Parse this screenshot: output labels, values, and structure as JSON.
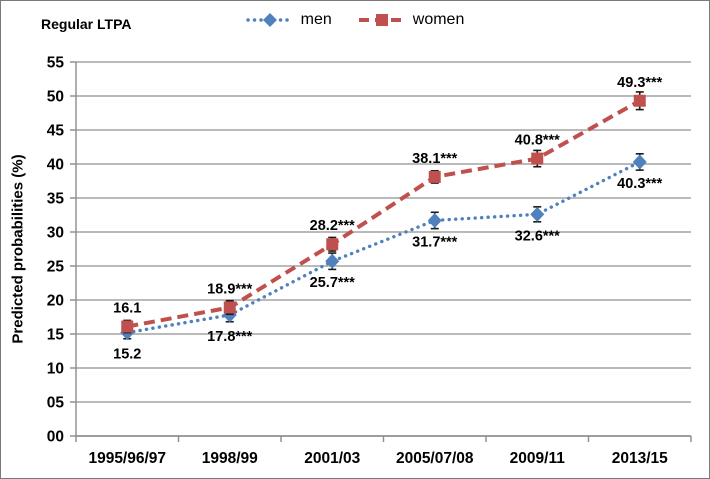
{
  "chart_data": {
    "type": "line",
    "title": "Regular LTPA",
    "xlabel": "",
    "ylabel": "Predicted probabilities (%)",
    "categories": [
      "1995/96/97",
      "1998/99",
      "2001/03",
      "2005/07/08",
      "2009/11",
      "2013/15"
    ],
    "ylim": [
      0,
      55
    ],
    "y_tick_labels": [
      "00",
      "05",
      "10",
      "15",
      "20",
      "25",
      "30",
      "35",
      "40",
      "45",
      "50",
      "55"
    ],
    "grid": "horizontal",
    "legend_position": "top-center",
    "colors": {
      "men": "#4F81BD",
      "women": "#C0504D",
      "gridline": "#A3A3A3",
      "axis": "#8C8C8C",
      "error_bar": "#1a1a1a",
      "text": "#000000"
    },
    "series": [
      {
        "name": "men",
        "color": "#4F81BD",
        "marker": "diamond",
        "line_style": "dotted",
        "values": [
          15.2,
          17.8,
          25.7,
          31.7,
          32.6,
          40.3
        ],
        "point_labels": [
          "15.2",
          "17.8***",
          "25.7***",
          "31.7***",
          "32.6***",
          "40.3***"
        ],
        "label_side": "below",
        "error_bars": [
          0.9,
          1.0,
          1.2,
          1.2,
          1.1,
          1.2
        ]
      },
      {
        "name": "women",
        "color": "#C0504D",
        "marker": "square",
        "line_style": "dashed",
        "values": [
          16.1,
          18.9,
          28.2,
          38.1,
          40.8,
          49.3
        ],
        "point_labels": [
          "16.1",
          "18.9***",
          "28.2***",
          "38.1***",
          "40.8***",
          "49.3***"
        ],
        "label_side": "above",
        "error_bars": [
          0.9,
          1.0,
          1.0,
          0.9,
          1.2,
          1.3
        ]
      }
    ]
  }
}
